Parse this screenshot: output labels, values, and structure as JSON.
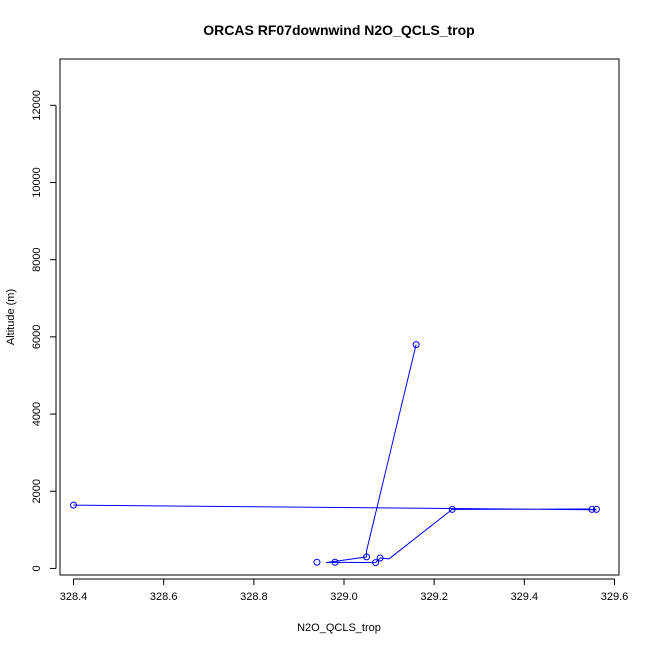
{
  "chart_data": {
    "type": "line",
    "title": "ORCAS RF07downwind N2O_QCLS_trop",
    "xlabel": "N2O_QCLS_trop",
    "ylabel": "Altitude (m)",
    "xlim": [
      328.37,
      329.61
    ],
    "ylim": [
      -170,
      13200
    ],
    "x_ticks": [
      328.4,
      328.6,
      328.8,
      329.0,
      329.2,
      329.4,
      329.6
    ],
    "x_tick_labels": [
      "328.4",
      "328.6",
      "328.8",
      "329.0",
      "329.2",
      "329.4",
      "329.6"
    ],
    "y_ticks": [
      0,
      2000,
      4000,
      6000,
      8000,
      10000,
      12000
    ],
    "y_tick_labels": [
      "0",
      "2000",
      "4000",
      "6000",
      "8000",
      "10000",
      "12000"
    ],
    "grid": false,
    "legend": "none",
    "color": "#0000ff",
    "series": [
      {
        "line_path": [
          [
            329.16,
            5800
          ],
          [
            329.05,
            450
          ],
          [
            329.05,
            300
          ],
          [
            328.96,
            150
          ],
          [
            328.98,
            160
          ],
          [
            329.07,
            150
          ],
          [
            329.08,
            270
          ],
          [
            329.1,
            250
          ],
          [
            329.24,
            1530
          ],
          [
            329.25,
            1530
          ],
          [
            329.54,
            1540
          ],
          [
            329.56,
            1520
          ],
          [
            329.55,
            1520
          ],
          [
            328.4,
            1640
          ]
        ],
        "markers": [
          [
            329.16,
            5800
          ],
          [
            328.4,
            1640
          ],
          [
            329.24,
            1530
          ],
          [
            329.55,
            1530
          ],
          [
            329.56,
            1530
          ],
          [
            329.05,
            300
          ],
          [
            329.08,
            270
          ],
          [
            328.94,
            160
          ],
          [
            328.98,
            160
          ],
          [
            329.07,
            150
          ]
        ]
      }
    ]
  }
}
